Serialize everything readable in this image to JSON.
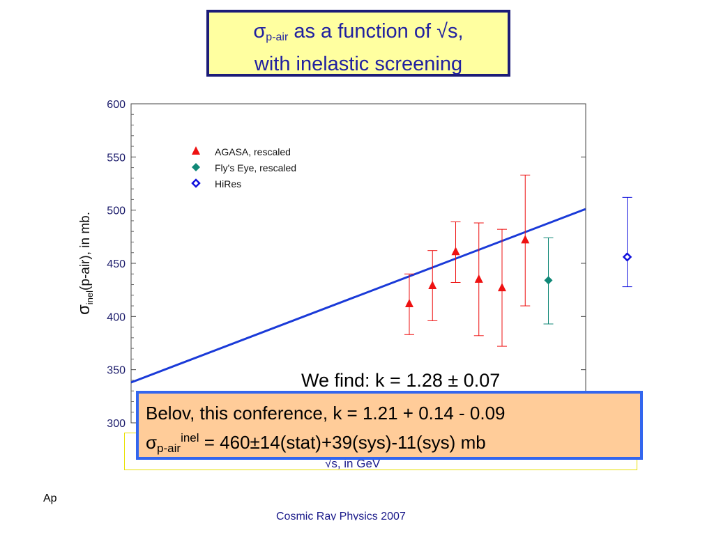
{
  "title": {
    "sigma": "σ",
    "sub": "p-air",
    "line1_rest": " as a function of ",
    "sqrt": "√",
    "line1_end": "s,",
    "line2": "with inelastic screening"
  },
  "chart_data": {
    "type": "scatter",
    "ylabel_sigma": "σ",
    "ylabel_sub": "inel",
    "ylabel_rest": "(p-air), in mb.",
    "xlabel": "√s, in GeV",
    "ylim": [
      300,
      600
    ],
    "yticks": [
      300,
      350,
      400,
      450,
      500,
      550,
      600
    ],
    "legend_position": "top-left",
    "series": [
      {
        "name": "AGASA,   rescaled",
        "marker": "triangle",
        "color": "#ee1111",
        "points": [
          {
            "x": 0.6,
            "y": 412,
            "ylo": 383,
            "yhi": 440
          },
          {
            "x": 0.65,
            "y": 429,
            "ylo": 396,
            "yhi": 462
          },
          {
            "x": 0.7,
            "y": 461,
            "ylo": 432,
            "yhi": 489
          },
          {
            "x": 0.75,
            "y": 435,
            "ylo": 382,
            "yhi": 488
          },
          {
            "x": 0.8,
            "y": 427,
            "ylo": 372,
            "yhi": 482
          },
          {
            "x": 0.85,
            "y": 472,
            "ylo": 410,
            "yhi": 533
          }
        ]
      },
      {
        "name": "Fly's Eye, rescaled",
        "marker": "diamond-filled",
        "color": "#118877",
        "points": [
          {
            "x": 0.9,
            "y": 434,
            "ylo": 393,
            "yhi": 474
          }
        ]
      },
      {
        "name": "HiRes",
        "marker": "diamond-open",
        "color": "#1111dd",
        "points": [
          {
            "x": 1.07,
            "y": 456,
            "ylo": 428,
            "yhi": 512
          }
        ]
      }
    ],
    "fit_line": {
      "color": "#1a3ad8",
      "points": [
        {
          "x": 0.0,
          "y": 338
        },
        {
          "x": 0.98,
          "y": 501
        }
      ]
    }
  },
  "annotation": {
    "find_text": "We find: k = 1.28 ±  0.07"
  },
  "belov": {
    "line1": "Belov, this conference, k = 1.21 + 0.14 - 0.09",
    "sigma": "σ",
    "sub": "p-air",
    "sup": "inel",
    "line2_rest": " = 460±14(stat)+39(sys)-11(sys) mb"
  },
  "footer": {
    "left": "Ap",
    "center": "Cosmic Ray Physics 2007"
  }
}
